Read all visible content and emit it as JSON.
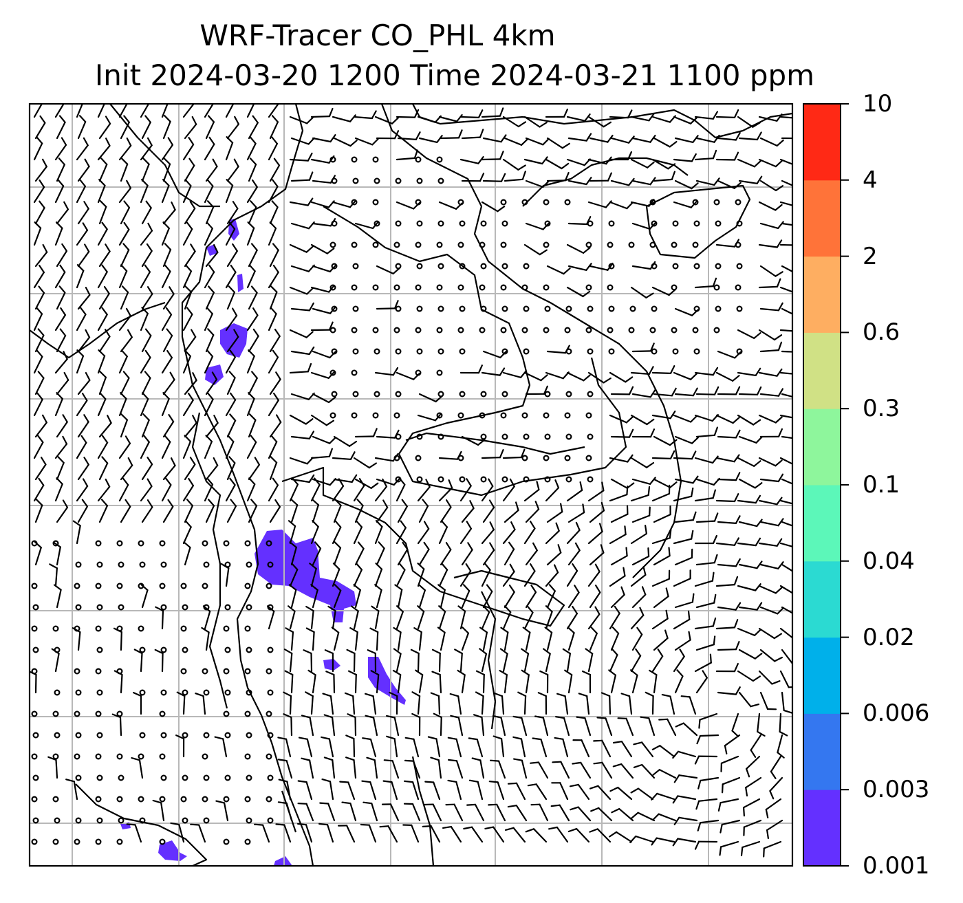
{
  "title": {
    "line1": "WRF-Tracer CO_PHL 4km",
    "line2": "Init 2024-03-20 1200 Time 2024-03-21 1100 ppm"
  },
  "colorbar": {
    "levels": [
      {
        "label": "0.001",
        "color": "#6430ff"
      },
      {
        "label": "0.003",
        "color": "#3477f0"
      },
      {
        "label": "0.006",
        "color": "#00b0ea"
      },
      {
        "label": "0.02",
        "color": "#2bdad2"
      },
      {
        "label": "0.04",
        "color": "#5cf7b9"
      },
      {
        "label": "0.1",
        "color": "#8ef69c"
      },
      {
        "label": "0.3",
        "color": "#d0e185"
      },
      {
        "label": "0.6",
        "color": "#feae61"
      },
      {
        "label": "2",
        "color": "#ff7339"
      },
      {
        "label": "4",
        "color": "#ff2915"
      },
      {
        "label": "10",
        "color": null
      }
    ]
  },
  "map_style": {
    "tracer_color": "#6430ff",
    "grid_color": "#b8b8b8",
    "coastline_color": "#000000",
    "barb_color": "#000000"
  }
}
